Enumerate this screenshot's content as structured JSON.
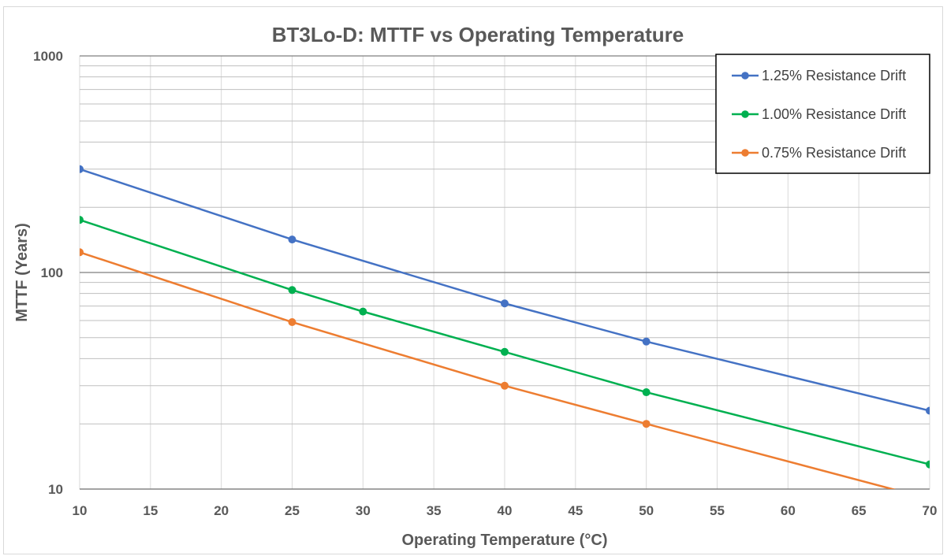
{
  "chart_data": {
    "type": "line",
    "title": "BT3Lo-D: MTTF vs Operating Temperature",
    "xlabel": "Operating Temperature (°C)",
    "ylabel": "MTTF (Years)",
    "xlim": [
      10,
      70
    ],
    "ylim": [
      10,
      1000
    ],
    "yscale": "log",
    "xticks": [
      10,
      15,
      20,
      25,
      30,
      35,
      40,
      45,
      50,
      55,
      60,
      65,
      70
    ],
    "yticks": [
      10,
      100,
      1000
    ],
    "grid": true,
    "legend_position": "top-right",
    "series": [
      {
        "name": "1.25% Resistance Drift",
        "color": "#4472c4",
        "x": [
          10,
          25,
          40,
          50,
          70
        ],
        "y": [
          300,
          142,
          72,
          48,
          23
        ]
      },
      {
        "name": "1.00% Resistance Drift",
        "color": "#00b050",
        "x": [
          10,
          25,
          30,
          40,
          50,
          70
        ],
        "y": [
          175,
          83,
          66,
          43,
          28,
          13
        ]
      },
      {
        "name": "0.75% Resistance Drift",
        "color": "#ed7d31",
        "x": [
          10,
          25,
          40,
          50,
          70
        ],
        "y": [
          124,
          59,
          30,
          20,
          9
        ]
      }
    ]
  }
}
